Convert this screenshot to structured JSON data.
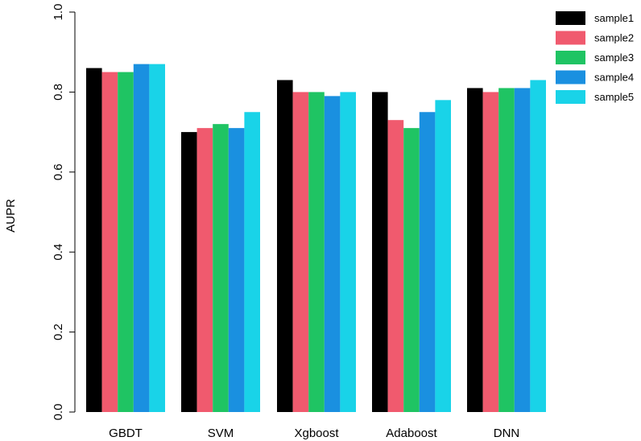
{
  "chart_data": {
    "type": "bar",
    "title": "",
    "xlabel": "",
    "ylabel": "AUPR",
    "ylim": [
      0,
      1.0
    ],
    "yticks": [
      "0.0",
      "0.2",
      "0.4",
      "0.6",
      "0.8",
      "1.0"
    ],
    "grid": false,
    "legend_position": "top-right",
    "categories": [
      "GBDT",
      "SVM",
      "Xgboost",
      "Adaboost",
      "DNN"
    ],
    "series": [
      {
        "name": "sample1",
        "color": "#000000",
        "values": [
          0.86,
          0.7,
          0.83,
          0.8,
          0.81
        ]
      },
      {
        "name": "sample2",
        "color": "#f05a6e",
        "values": [
          0.85,
          0.71,
          0.8,
          0.73,
          0.8
        ]
      },
      {
        "name": "sample3",
        "color": "#1fc463",
        "values": [
          0.85,
          0.72,
          0.8,
          0.71,
          0.81
        ]
      },
      {
        "name": "sample4",
        "color": "#1a90e0",
        "values": [
          0.87,
          0.71,
          0.79,
          0.75,
          0.81
        ]
      },
      {
        "name": "sample5",
        "color": "#19d3e8",
        "values": [
          0.87,
          0.75,
          0.8,
          0.78,
          0.83
        ]
      }
    ]
  }
}
